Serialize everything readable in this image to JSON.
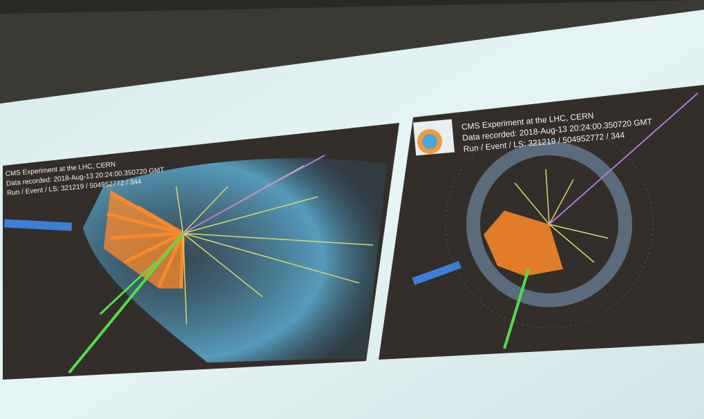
{
  "panels": [
    {
      "lines": [
        "CMS Experiment at the LHC, CERN",
        "Data recorded: 2018-Aug-13 20:24:00.350720 GMT",
        "Run / Event / LS: 321219 / 504952772 / 344"
      ]
    },
    {
      "lines": [
        "CMS Experiment at the LHC, CERN",
        "Data recorded: 2018-Aug-13 20:24:00.350720 GMT",
        "Run / Event / LS: 321219 / 504952772 / 344"
      ]
    }
  ]
}
